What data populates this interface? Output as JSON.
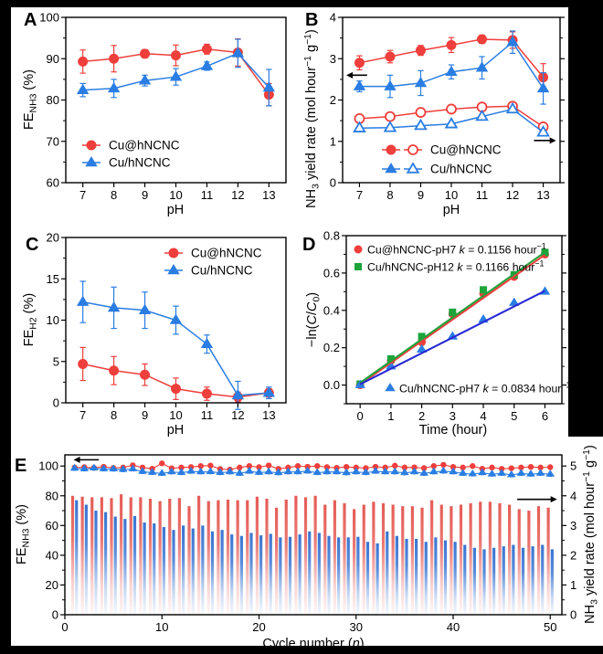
{
  "figure": {
    "panel_background": "#ffffff",
    "canvas_background": "#000000",
    "colors": {
      "red": "#ee3f3c",
      "blue": "#2a7de2",
      "green": "#1da43a",
      "fitblue": "#2a2ad6",
      "bar_red": "#e4534d",
      "bar_blue": "#2f6dcf",
      "axis": "#000000",
      "white": "#ffffff"
    }
  },
  "chart_data": [
    {
      "id": "A",
      "type": "line",
      "panel_letter": "A",
      "xlabel": "pH",
      "ylabel": "FE~NH3~ (%)",
      "xlim": [
        6.45,
        13.55
      ],
      "ylim": [
        60,
        100
      ],
      "xticks": [
        7,
        8,
        9,
        10,
        11,
        12,
        13
      ],
      "xtick_labels": [
        "7",
        "8",
        "9",
        "10",
        "11",
        "12",
        "13"
      ],
      "yticks": [
        60,
        70,
        80,
        90,
        100
      ],
      "ytick_labels": [
        "60",
        "70",
        "80",
        "90",
        "100"
      ],
      "y_minor": 5,
      "x": [
        7,
        8,
        9,
        10,
        11,
        12,
        13
      ],
      "series": [
        {
          "name": "Cu@hNCNC",
          "kind": "line",
          "marker": "circle",
          "color": "red",
          "values": [
            89.3,
            90.0,
            91.2,
            90.8,
            92.3,
            91.5,
            81.3
          ],
          "errors": [
            2.8,
            3.2,
            1.0,
            2.5,
            1.2,
            3.3,
            2.7
          ]
        },
        {
          "name": "Cu/hNCNC",
          "kind": "line",
          "marker": "triangle",
          "color": "blue",
          "values": [
            82.4,
            82.8,
            84.7,
            85.6,
            88.2,
            91.3,
            83.0
          ],
          "errors": [
            1.6,
            2.2,
            1.3,
            2.0,
            1.0,
            3.4,
            4.4
          ]
        }
      ],
      "legend": {
        "rows": [
          {
            "symbols": [
              [
                "circle",
                "red",
                false
              ]
            ],
            "label": "Cu@hNCNC"
          },
          {
            "symbols": [
              [
                "triangle",
                "blue",
                false
              ]
            ],
            "label": "Cu/hNCNC"
          }
        ]
      }
    },
    {
      "id": "B",
      "type": "line",
      "panel_letter": "B",
      "xlabel": "pH",
      "ylabel": "NH~3~ yield rate (mol hour^−1^ g^−1^)",
      "xlim": [
        6.45,
        13.55
      ],
      "ylim": [
        0,
        4
      ],
      "xticks": [
        7,
        8,
        9,
        10,
        11,
        12,
        13
      ],
      "xtick_labels": [
        "7",
        "8",
        "9",
        "10",
        "11",
        "12",
        "13"
      ],
      "yticks": [
        0,
        1,
        2,
        3,
        4
      ],
      "ytick_labels": [
        "0",
        "1",
        "2",
        "3",
        "4"
      ],
      "y_minor": 0.5,
      "x": [
        7,
        8,
        9,
        10,
        11,
        12,
        13
      ],
      "series": [
        {
          "name": "Cu@hNCNC (left axis)",
          "kind": "line",
          "marker": "circle",
          "color": "red",
          "values": [
            2.9,
            3.05,
            3.2,
            3.33,
            3.47,
            3.45,
            2.55
          ],
          "errors": [
            0.17,
            0.15,
            0.12,
            0.18,
            0.1,
            0.2,
            0.33
          ]
        },
        {
          "name": "Cu/hNCNC (left axis)",
          "kind": "line",
          "marker": "triangle",
          "color": "blue",
          "values": [
            2.33,
            2.33,
            2.41,
            2.68,
            2.78,
            3.4,
            2.28
          ],
          "errors": [
            0.13,
            0.27,
            0.3,
            0.17,
            0.27,
            0.27,
            0.38
          ]
        },
        {
          "name": "Cu@hNCNC (right axis)",
          "kind": "line",
          "marker": "circle",
          "color": "red",
          "open": true,
          "values": [
            1.55,
            1.6,
            1.7,
            1.78,
            1.83,
            1.85,
            1.35
          ]
        },
        {
          "name": "Cu/hNCNC (right axis)",
          "kind": "line",
          "marker": "triangle",
          "color": "blue",
          "open": true,
          "values": [
            1.32,
            1.33,
            1.38,
            1.42,
            1.6,
            1.78,
            1.22
          ]
        }
      ],
      "arrows": [
        {
          "axis": "left",
          "x_from": 7.25,
          "x_to": 6.57,
          "y": 2.6
        },
        {
          "axis": "left",
          "x_from": 12.7,
          "x_to": 13.42,
          "y": 1.02
        }
      ],
      "legend": {
        "rows": [
          {
            "symbols": [
              [
                "circle",
                "red",
                false
              ],
              [
                "circle",
                "red",
                true
              ]
            ],
            "label": "Cu@hNCNC"
          },
          {
            "symbols": [
              [
                "triangle",
                "blue",
                false
              ],
              [
                "triangle",
                "blue",
                true
              ]
            ],
            "label": "Cu/hNCNC"
          }
        ]
      }
    },
    {
      "id": "C",
      "type": "line",
      "panel_letter": "C",
      "xlabel": "pH",
      "ylabel": "FE~H2~ (%)",
      "xlim": [
        6.45,
        13.55
      ],
      "ylim": [
        0,
        20
      ],
      "xticks": [
        7,
        8,
        9,
        10,
        11,
        12,
        13
      ],
      "xtick_labels": [
        "7",
        "8",
        "9",
        "10",
        "11",
        "12",
        "13"
      ],
      "yticks": [
        0,
        5,
        10,
        15,
        20
      ],
      "ytick_labels": [
        "0",
        "5",
        "10",
        "15",
        "20"
      ],
      "y_minor": 2.5,
      "x": [
        7,
        8,
        9,
        10,
        11,
        12,
        13
      ],
      "series": [
        {
          "name": "Cu@hNCNC",
          "kind": "line",
          "marker": "circle",
          "color": "red",
          "values": [
            4.7,
            3.9,
            3.4,
            1.7,
            1.1,
            0.7,
            1.2
          ],
          "errors": [
            2.0,
            1.7,
            1.3,
            1.3,
            0.8,
            0.6,
            0.5
          ]
        },
        {
          "name": "Cu/hNCNC",
          "kind": "line",
          "marker": "triangle",
          "color": "blue",
          "values": [
            12.2,
            11.5,
            11.2,
            10.0,
            7.1,
            0.9,
            1.2
          ],
          "errors": [
            2.5,
            2.5,
            2.2,
            1.7,
            1.1,
            1.7,
            0.7
          ]
        }
      ],
      "legend": {
        "rows": [
          {
            "symbols": [
              [
                "circle",
                "red",
                false
              ]
            ],
            "label": "Cu@hNCNC"
          },
          {
            "symbols": [
              [
                "triangle",
                "blue",
                false
              ]
            ],
            "label": "Cu/hNCNC"
          }
        ]
      }
    },
    {
      "id": "D",
      "type": "scatter",
      "panel_letter": "D",
      "xlabel": "Time (hour)",
      "ylabel": "−ln(*C*/*C*~0~)",
      "xlim": [
        -0.45,
        6.55
      ],
      "ylim": [
        -0.1,
        0.8
      ],
      "xticks": [
        0,
        1,
        2,
        3,
        4,
        5,
        6
      ],
      "xtick_labels": [
        "0",
        "1",
        "2",
        "3",
        "4",
        "5",
        "6"
      ],
      "yticks": [
        0,
        0.2,
        0.4,
        0.6,
        0.8
      ],
      "ytick_labels": [
        "0.0",
        "0.2",
        "0.4",
        "0.6",
        "0.8"
      ],
      "y_minor": 0.1,
      "x": [
        0,
        1,
        2,
        3,
        4,
        5,
        6
      ],
      "series": [
        {
          "name": "Cu@hNCNC-pH7",
          "kind": "scatter",
          "marker": "circle",
          "color": "red",
          "values": [
            0.0,
            0.13,
            0.23,
            0.38,
            0.49,
            0.58,
            0.7
          ]
        },
        {
          "name": "Cu/hNCNC-pH12",
          "kind": "scatter",
          "marker": "square",
          "color": "green",
          "values": [
            0.005,
            0.14,
            0.26,
            0.39,
            0.51,
            0.59,
            0.71
          ]
        },
        {
          "name": "Cu/hNCNC-pH7",
          "kind": "scatter",
          "marker": "triangle",
          "color": "blue",
          "values": [
            0.0,
            0.1,
            0.19,
            0.26,
            0.35,
            0.44,
            0.5
          ]
        }
      ],
      "fits": [
        {
          "name": "fit Cu@hNCNC-pH7",
          "k": 0.1156,
          "b": 0.004,
          "color": "red"
        },
        {
          "name": "fit Cu/hNCNC-pH12",
          "k": 0.1166,
          "b": 0.012,
          "color": "green"
        },
        {
          "name": "fit Cu/hNCNC-pH7",
          "k": 0.0834,
          "b": 0.004,
          "color": "fitblue"
        }
      ],
      "legend": {
        "rows": [
          {
            "symbols": [
              [
                "circle",
                "red",
                false
              ]
            ],
            "label": "Cu@hNCNC-pH7  *k* = 0.1156 hour^−1^"
          },
          {
            "symbols": [
              [
                "square",
                "green",
                false
              ]
            ],
            "label": "Cu/hNCNC-pH12  *k* = 0.1166 hour^−1^"
          },
          {
            "symbols": [
              [
                "triangle",
                "blue",
                false
              ]
            ],
            "label": "Cu/hNCNC-pH7  *k* = 0.0834 hour^−1^"
          }
        ]
      }
    },
    {
      "id": "E",
      "type": "combo",
      "panel_letter": "E",
      "xlabel": "Cycle number (*n*)",
      "ylabel": "FE~NH3~ (%)",
      "ylabel2": "NH~3~ yield rate (mol hour^−1^ g^−1^)",
      "xlim": [
        0,
        51.2
      ],
      "ylim": [
        0,
        107.5
      ],
      "ylim2": [
        0,
        5.375
      ],
      "xticks": [
        0,
        10,
        20,
        30,
        40,
        50
      ],
      "xtick_labels": [
        "0",
        "10",
        "20",
        "30",
        "40",
        "50"
      ],
      "yticks": [
        0,
        20,
        40,
        60,
        80,
        100
      ],
      "ytick_labels": [
        "0",
        "20",
        "40",
        "60",
        "80",
        "100"
      ],
      "y_minor": 10,
      "y2ticks": [
        0,
        1,
        2,
        3,
        4,
        5
      ],
      "y2tick_labels": [
        "0",
        "1",
        "2",
        "3",
        "4",
        "5"
      ],
      "y2_minor": 0.5,
      "bar_width": 0.3,
      "series": [
        {
          "name": "Cu@hNCNC NH3 yield rate",
          "kind": "bar",
          "axis": "right",
          "color": "bar_red",
          "x_offset": -0.2,
          "values": [
            4.0,
            3.97,
            3.95,
            3.95,
            3.92,
            4.05,
            3.95,
            3.95,
            3.9,
            3.82,
            3.9,
            3.92,
            3.65,
            4.0,
            3.82,
            3.85,
            3.87,
            3.85,
            3.85,
            3.97,
            3.9,
            3.6,
            3.87,
            4.0,
            3.95,
            4.0,
            3.7,
            3.85,
            3.75,
            3.55,
            3.7,
            3.8,
            3.75,
            3.7,
            3.65,
            3.65,
            3.6,
            3.85,
            3.7,
            3.65,
            3.7,
            3.75,
            3.8,
            3.8,
            3.75,
            3.7,
            3.55,
            3.5,
            3.65,
            3.6
          ]
        },
        {
          "name": "Cu/hNCNC NH3 yield rate",
          "kind": "bar",
          "axis": "right",
          "color": "bar_blue",
          "x_offset": 0.2,
          "values": [
            3.85,
            3.7,
            3.5,
            3.45,
            3.3,
            3.22,
            3.32,
            3.1,
            3.07,
            2.95,
            2.85,
            3.0,
            2.9,
            3.0,
            2.8,
            2.85,
            2.7,
            2.65,
            2.75,
            2.67,
            2.72,
            2.6,
            2.62,
            2.7,
            2.8,
            2.75,
            2.65,
            2.6,
            2.6,
            2.62,
            2.45,
            2.4,
            2.8,
            2.65,
            2.55,
            2.55,
            2.45,
            2.6,
            2.5,
            2.45,
            2.35,
            2.25,
            2.2,
            2.25,
            2.3,
            2.35,
            2.25,
            2.3,
            2.35,
            2.2
          ]
        },
        {
          "name": "Cu@hNCNC FE",
          "kind": "line",
          "axis": "left",
          "marker": "circle",
          "color": "red",
          "error": 1.3,
          "values": [
            99.0,
            99.2,
            98.8,
            99.5,
            98.7,
            99.0,
            100.5,
            99.0,
            98.2,
            101.8,
            98.5,
            99.0,
            99.3,
            100.0,
            100.3,
            98.0,
            97.6,
            99.0,
            100.0,
            99.2,
            100.4,
            98.1,
            99.0,
            100.0,
            99.5,
            100.0,
            99.2,
            98.8,
            99.4,
            99.0,
            98.6,
            99.5,
            99.0,
            100.2,
            99.0,
            99.1,
            98.6,
            100.0,
            100.8,
            99.4,
            99.0,
            100.0,
            98.2,
            99.0,
            98.1,
            98.5,
            99.0,
            99.4,
            99.0,
            99.2
          ]
        },
        {
          "name": "Cu/hNCNC FE",
          "kind": "line",
          "axis": "left",
          "marker": "triangle",
          "color": "blue",
          "error": 1.3,
          "values": [
            98.4,
            98.0,
            98.5,
            98.0,
            97.9,
            97.5,
            98.0,
            96.2,
            95.6,
            95.0,
            96.0,
            95.5,
            96.4,
            96.0,
            96.1,
            95.5,
            96.0,
            95.0,
            96.4,
            95.6,
            96.0,
            95.4,
            96.0,
            96.0,
            96.5,
            95.5,
            96.0,
            96.0,
            95.4,
            96.0,
            95.5,
            96.4,
            96.0,
            96.0,
            95.4,
            96.0,
            95.0,
            96.0,
            96.5,
            96.0,
            95.0,
            94.6,
            95.4,
            94.5,
            95.0,
            94.0,
            95.0,
            94.5,
            95.0,
            94.4
          ]
        }
      ],
      "arrows": [
        {
          "axis": "left",
          "x_from": 3.5,
          "x_to": 0.9,
          "y": 104.2
        },
        {
          "axis": "right",
          "x_from": 46.6,
          "x_to": 50.7,
          "y": 3.88
        }
      ]
    }
  ]
}
